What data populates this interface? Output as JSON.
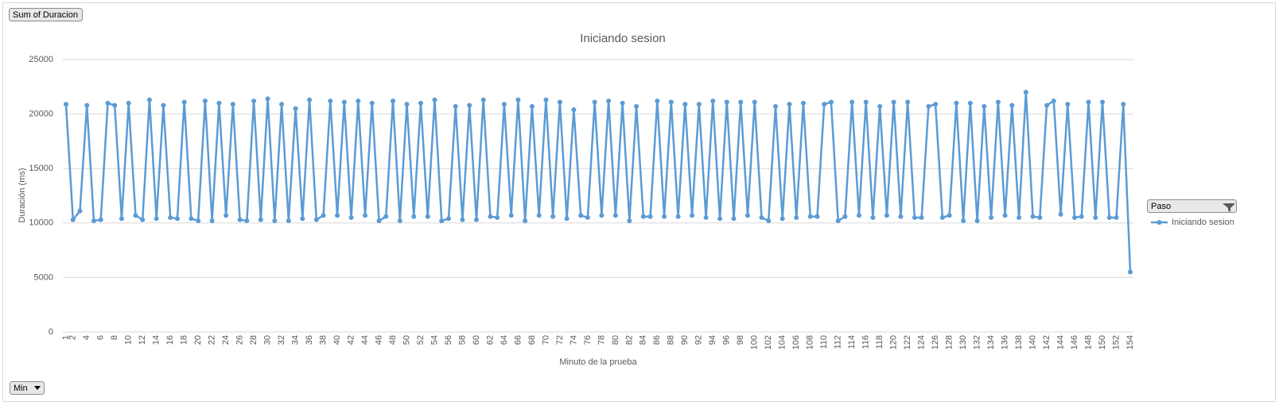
{
  "chart_data": {
    "type": "line",
    "title": "Iniciando sesion",
    "x_label": "Minuto de la prueba",
    "y_label": "Duración (ms)",
    "categories": [
      1,
      2,
      null,
      4,
      null,
      6,
      null,
      8,
      null,
      10,
      null,
      12,
      null,
      14,
      null,
      16,
      null,
      18,
      null,
      20,
      null,
      22,
      null,
      24,
      null,
      26,
      null,
      28,
      null,
      30,
      null,
      32,
      null,
      34,
      null,
      36,
      null,
      38,
      null,
      40,
      null,
      42,
      null,
      44,
      null,
      46,
      null,
      48,
      null,
      50,
      null,
      52,
      null,
      54,
      null,
      56,
      null,
      58,
      null,
      60,
      null,
      62,
      null,
      64,
      null,
      66,
      null,
      68,
      null,
      70,
      null,
      72,
      null,
      74,
      null,
      76,
      null,
      78,
      null,
      80,
      null,
      82,
      null,
      84,
      null,
      86,
      null,
      88,
      null,
      90,
      null,
      92,
      null,
      94,
      null,
      96,
      null,
      98,
      null,
      100,
      null,
      102,
      null,
      104,
      null,
      106,
      null,
      108,
      null,
      110,
      null,
      112,
      null,
      114,
      null,
      116,
      null,
      118,
      null,
      120,
      null,
      122,
      null,
      124,
      null,
      126,
      null,
      128,
      null,
      130,
      null,
      132,
      null,
      134,
      null,
      136,
      null,
      138,
      null,
      140,
      null,
      142,
      null,
      144,
      null,
      146,
      null,
      148,
      null,
      150,
      null,
      152,
      null,
      154
    ],
    "series": [
      {
        "name": "Iniciando sesion",
        "color": "#5b9bd5",
        "values": [
          20900,
          10300,
          11100,
          20800,
          10200,
          10300,
          21000,
          20800,
          10400,
          21000,
          10700,
          10300,
          21300,
          10400,
          20800,
          10500,
          10400,
          21100,
          10400,
          10200,
          21200,
          10200,
          21000,
          10700,
          20900,
          10300,
          10200,
          21200,
          10300,
          21400,
          10200,
          20900,
          10200,
          20500,
          10400,
          21300,
          10300,
          10700,
          21200,
          10700,
          21100,
          10500,
          21200,
          10700,
          21000,
          10200,
          10600,
          21200,
          10200,
          20900,
          10600,
          21000,
          10600,
          21300,
          10200,
          10400,
          20700,
          10300,
          20800,
          10300,
          21300,
          10600,
          10500,
          20900,
          10700,
          21300,
          10200,
          20700,
          10700,
          21300,
          10600,
          21100,
          10400,
          20400,
          10700,
          10500,
          21100,
          10700,
          21200,
          10700,
          21000,
          10200,
          20700,
          10600,
          10600,
          21200,
          10600,
          21100,
          10600,
          20900,
          10700,
          20900,
          10500,
          21200,
          10400,
          21100,
          10400,
          21100,
          10700,
          21100,
          10500,
          10200,
          20700,
          10400,
          20900,
          10500,
          21000,
          10600,
          10600,
          20900,
          21100,
          10200,
          10600,
          21100,
          10700,
          21100,
          10500,
          20700,
          10700,
          21100,
          10600,
          21100,
          10500,
          10500,
          20700,
          20900,
          10500,
          10700,
          21000,
          10200,
          21000,
          10200,
          20700,
          10500,
          21100,
          10700,
          20800,
          10500,
          22000,
          10600,
          10500,
          20800,
          21200,
          10800,
          20900,
          10500,
          10600,
          21100,
          10500,
          21100,
          10500,
          10500,
          20900,
          5500
        ]
      }
    ],
    "ylim": [
      0,
      25000
    ],
    "yticks": [
      0,
      5000,
      10000,
      15000,
      20000,
      25000
    ],
    "grid": true,
    "legend": "right"
  },
  "field_buttons": {
    "value": "Sum of Duracion",
    "axis": "Min",
    "legend": "Paso"
  }
}
